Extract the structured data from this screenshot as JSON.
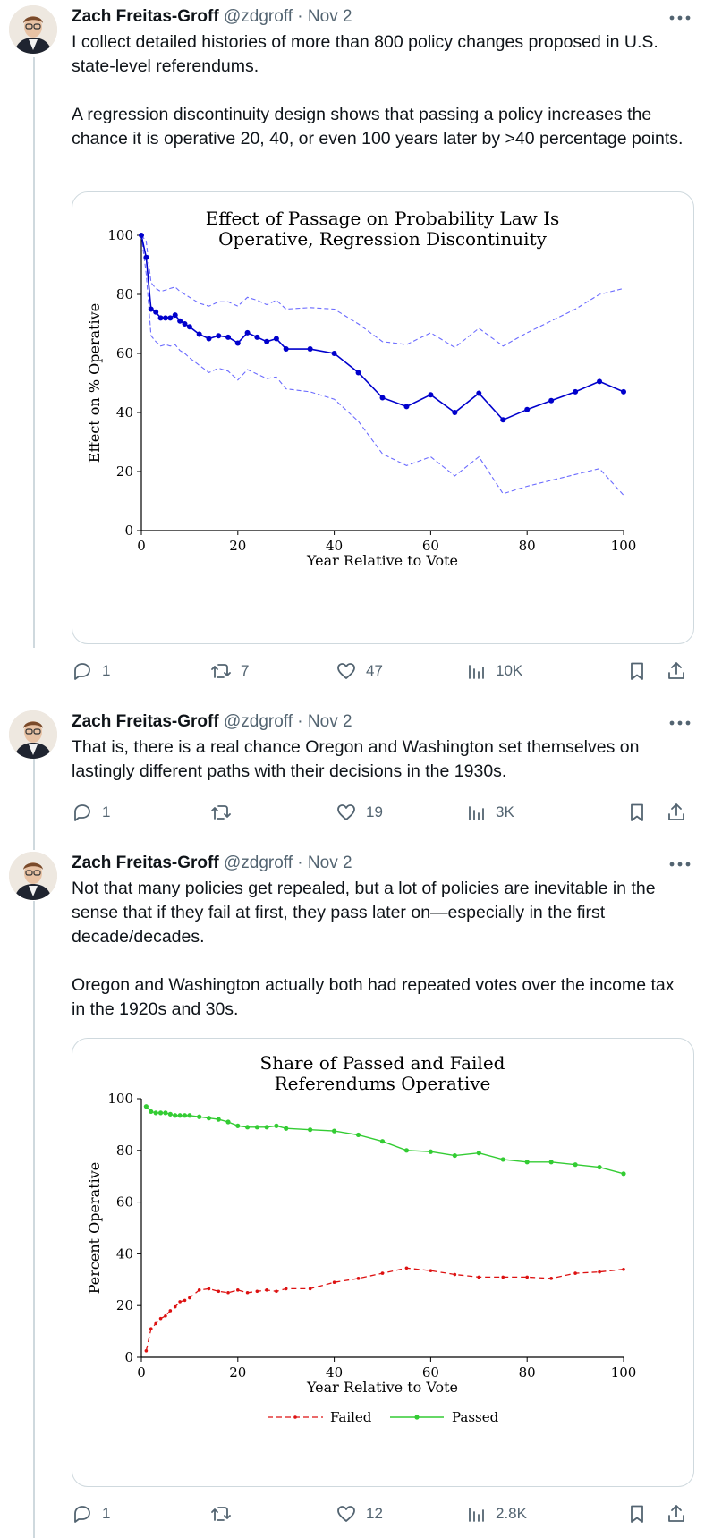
{
  "author": {
    "name": "Zach Freitas-Groff",
    "handle": "@zdgroff",
    "separator": "·"
  },
  "tweets": [
    {
      "date": "Nov 2",
      "paragraphs": [
        "I collect detailed histories of more than 800 policy changes proposed in U.S. state-level referendums.",
        "A regression discontinuity design shows that passing a policy increases the chance it is operative 20, 40, or even 100 years later by >40 percentage points."
      ],
      "stats": {
        "replies": "1",
        "reposts": "7",
        "likes": "47",
        "views": "10K"
      }
    },
    {
      "date": "Nov 2",
      "paragraphs": [
        "That is, there is a real chance Oregon and Washington set themselves on lastingly different paths with their decisions in the 1930s."
      ],
      "stats": {
        "replies": "1",
        "reposts": "",
        "likes": "19",
        "views": "3K"
      }
    },
    {
      "date": "Nov 2",
      "paragraphs": [
        "Not that many policies get repealed, but a lot of policies are inevitable in the sense that if they fail at first, they pass later on—especially in the first decade/decades.",
        "Oregon and Washington actually both had repeated votes over the income tax in the 1920s and 30s."
      ],
      "stats": {
        "replies": "1",
        "reposts": "",
        "likes": "12",
        "views": "2.8K"
      }
    }
  ],
  "icons": [
    "avatar",
    "more-icon",
    "reply-icon",
    "repost-icon",
    "like-icon",
    "views-icon",
    "bookmark-icon",
    "share-icon"
  ],
  "colors": {
    "text": "#0f1419",
    "muted": "#536471",
    "line_blue": "#0000cc",
    "ci_blue": "#6b6bff",
    "passed": "#33cc33",
    "failed": "#dd1111"
  },
  "chart_data": [
    {
      "type": "line",
      "title": [
        "Effect of Passage on Probability Law Is",
        "Operative, Regression Discontinuity"
      ],
      "xlabel": "Year Relative to Vote",
      "ylabel": "Effect on % Operative",
      "xlim": [
        0,
        100
      ],
      "ylim": [
        0,
        100
      ],
      "xticks": [
        0,
        20,
        40,
        60,
        80,
        100
      ],
      "yticks": [
        0,
        20,
        40,
        60,
        80,
        100
      ],
      "x": [
        0,
        1,
        2,
        3,
        4,
        5,
        6,
        7,
        8,
        9,
        10,
        12,
        14,
        16,
        18,
        20,
        22,
        24,
        26,
        28,
        30,
        35,
        40,
        45,
        50,
        55,
        60,
        65,
        70,
        75,
        80,
        85,
        90,
        95,
        100
      ],
      "series": [
        {
          "role": "estimate",
          "values": [
            100,
            92.5,
            75,
            74,
            72,
            72,
            72,
            73,
            71,
            70,
            69,
            66.5,
            65,
            66,
            65.5,
            63.5,
            67,
            65.5,
            64,
            65,
            61.5,
            61.5,
            60,
            53.5,
            45,
            42,
            46,
            40,
            46.5,
            37.5,
            41,
            44,
            47,
            50.5,
            47
          ]
        },
        {
          "role": "upper",
          "values": [
            100,
            98,
            84,
            82,
            81,
            81.5,
            82,
            82.5,
            81,
            80,
            79,
            77,
            76,
            77.5,
            77.5,
            76,
            79,
            78,
            76.5,
            78,
            75,
            75.5,
            75,
            70,
            64,
            63,
            67,
            62,
            68.5,
            62.5,
            67,
            71,
            75,
            80,
            82
          ]
        },
        {
          "role": "lower",
          "values": [
            100,
            87,
            66,
            64,
            62.5,
            63,
            62.5,
            63,
            61,
            60,
            58.5,
            56,
            53.5,
            55,
            54,
            51,
            54.5,
            53,
            51.5,
            52,
            48,
            47,
            44.5,
            37,
            26,
            22,
            25,
            18.5,
            25,
            12.5,
            15,
            17,
            19,
            21,
            12
          ]
        }
      ]
    },
    {
      "type": "line",
      "title": [
        "Share of Passed and Failed",
        "Referendums Operative"
      ],
      "xlabel": "Year Relative to Vote",
      "ylabel": "Percent Operative",
      "xlim": [
        0,
        100
      ],
      "ylim": [
        0,
        100
      ],
      "xticks": [
        0,
        20,
        40,
        60,
        80,
        100
      ],
      "yticks": [
        0,
        20,
        40,
        60,
        80,
        100
      ],
      "legend": {
        "position": "bottom",
        "entries": [
          "Failed",
          "Passed"
        ]
      },
      "series": [
        {
          "name": "Failed",
          "x": [
            1,
            2,
            3,
            4,
            5,
            6,
            7,
            8,
            9,
            10,
            12,
            14,
            16,
            18,
            20,
            22,
            24,
            26,
            28,
            30,
            35,
            40,
            45,
            50,
            55,
            60,
            65,
            70,
            75,
            80,
            85,
            90,
            95,
            100
          ],
          "values": [
            2.5,
            11,
            13,
            15,
            16,
            18,
            19.5,
            21.5,
            22,
            23,
            26,
            26.5,
            25.5,
            25,
            26,
            25,
            25.5,
            26,
            25.5,
            26.5,
            26.5,
            29,
            30.5,
            32.5,
            34.5,
            33.5,
            32,
            31,
            31,
            31,
            30.5,
            32.5,
            33,
            34
          ]
        },
        {
          "name": "Passed",
          "x": [
            1,
            2,
            3,
            4,
            5,
            6,
            7,
            8,
            9,
            10,
            12,
            14,
            16,
            18,
            20,
            22,
            24,
            26,
            28,
            30,
            35,
            40,
            45,
            50,
            55,
            60,
            65,
            70,
            75,
            80,
            85,
            90,
            95,
            100
          ],
          "values": [
            97,
            95,
            94.5,
            94.5,
            94.5,
            94,
            93.5,
            93.5,
            93.5,
            93.5,
            93,
            92.5,
            92,
            91,
            89.5,
            89,
            89,
            89,
            89.5,
            88.5,
            88,
            87.5,
            86,
            83.5,
            80,
            79.5,
            78,
            79,
            76.5,
            75.5,
            75.5,
            74.5,
            73.5,
            71
          ]
        }
      ]
    }
  ]
}
